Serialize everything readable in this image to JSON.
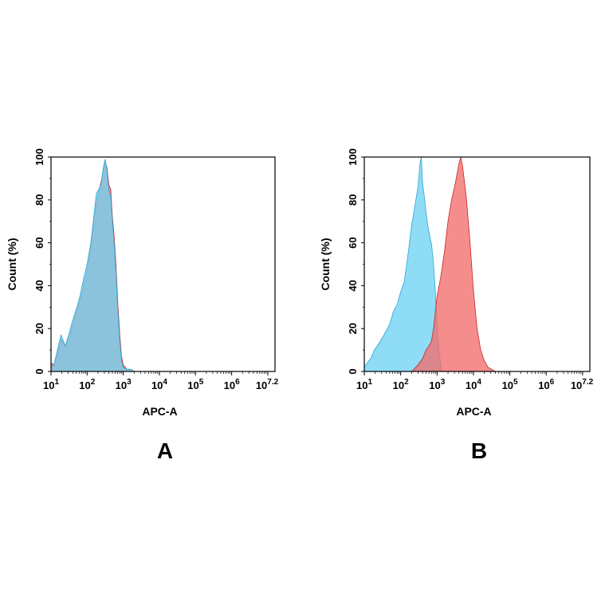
{
  "chart_data": [
    {
      "type": "area",
      "panel_label": "A",
      "xlabel": "APC-A",
      "ylabel": "Count (%)",
      "x_scale": "log10",
      "xlim": [
        10,
        15848931.92
      ],
      "ylim": [
        0,
        100
      ],
      "x_tick_labels": [
        {
          "base": "10",
          "exp": "1"
        },
        {
          "base": "10",
          "exp": "2"
        },
        {
          "base": "10",
          "exp": "3"
        },
        {
          "base": "10",
          "exp": "4"
        },
        {
          "base": "10",
          "exp": "5"
        },
        {
          "base": "10",
          "exp": "6"
        },
        {
          "base": "10",
          "exp": "7.2"
        }
      ],
      "y_tick_labels": [
        "0",
        "20",
        "40",
        "60",
        "80",
        "100"
      ],
      "grid": false,
      "series": [
        {
          "color": "#f26d6d",
          "stroke": "#c62828",
          "points": [
            [
              10,
              4
            ],
            [
              12,
              3
            ],
            [
              15,
              8
            ],
            [
              19,
              15
            ],
            [
              25,
              12
            ],
            [
              32,
              16
            ],
            [
              40,
              22
            ],
            [
              50,
              28
            ],
            [
              63,
              33
            ],
            [
              79,
              40
            ],
            [
              100,
              47
            ],
            [
              126,
              58
            ],
            [
              150,
              68
            ],
            [
              180,
              79
            ],
            [
              210,
              84
            ],
            [
              240,
              88
            ],
            [
              280,
              94
            ],
            [
              315,
              98
            ],
            [
              355,
              95
            ],
            [
              400,
              87
            ],
            [
              450,
              85
            ],
            [
              500,
              72
            ],
            [
              560,
              63
            ],
            [
              630,
              49
            ],
            [
              710,
              31
            ],
            [
              800,
              17
            ],
            [
              890,
              7
            ],
            [
              1000,
              3
            ],
            [
              1260,
              1
            ],
            [
              1600,
              1
            ],
            [
              2000,
              0
            ],
            [
              4000,
              0
            ]
          ]
        },
        {
          "color": "#6ed2f2",
          "stroke": "#2aa7d6",
          "points": [
            [
              10,
              2
            ],
            [
              12,
              3
            ],
            [
              15,
              10
            ],
            [
              19,
              17
            ],
            [
              25,
              12
            ],
            [
              32,
              18
            ],
            [
              40,
              24
            ],
            [
              50,
              29
            ],
            [
              63,
              35
            ],
            [
              79,
              43
            ],
            [
              100,
              50
            ],
            [
              126,
              60
            ],
            [
              150,
              71
            ],
            [
              180,
              83
            ],
            [
              210,
              85
            ],
            [
              240,
              87
            ],
            [
              280,
              95
            ],
            [
              315,
              99
            ],
            [
              355,
              94
            ],
            [
              400,
              84
            ],
            [
              450,
              82
            ],
            [
              500,
              70
            ],
            [
              560,
              60
            ],
            [
              630,
              46
            ],
            [
              710,
              28
            ],
            [
              800,
              14
            ],
            [
              890,
              5
            ],
            [
              1000,
              2
            ],
            [
              1260,
              1
            ],
            [
              1600,
              1
            ],
            [
              2000,
              0
            ],
            [
              4000,
              0
            ]
          ]
        }
      ]
    },
    {
      "type": "area",
      "panel_label": "B",
      "xlabel": "APC-A",
      "ylabel": "Count (%)",
      "x_scale": "log10",
      "xlim": [
        10,
        15848931.92
      ],
      "ylim": [
        0,
        100
      ],
      "x_tick_labels": [
        {
          "base": "10",
          "exp": "1"
        },
        {
          "base": "10",
          "exp": "2"
        },
        {
          "base": "10",
          "exp": "3"
        },
        {
          "base": "10",
          "exp": "4"
        },
        {
          "base": "10",
          "exp": "5"
        },
        {
          "base": "10",
          "exp": "6"
        },
        {
          "base": "10",
          "exp": "7.2"
        }
      ],
      "y_tick_labels": [
        "0",
        "20",
        "40",
        "60",
        "80",
        "100"
      ],
      "grid": false,
      "series": [
        {
          "color": "#6ed2f2",
          "stroke": "#2aa7d6",
          "points": [
            [
              10,
              2
            ],
            [
              12,
              4
            ],
            [
              15,
              6
            ],
            [
              19,
              10
            ],
            [
              25,
              13
            ],
            [
              32,
              16
            ],
            [
              40,
              19
            ],
            [
              50,
              22
            ],
            [
              63,
              28
            ],
            [
              79,
              31
            ],
            [
              100,
              37
            ],
            [
              126,
              42
            ],
            [
              160,
              55
            ],
            [
              200,
              68
            ],
            [
              250,
              78
            ],
            [
              300,
              86
            ],
            [
              340,
              97
            ],
            [
              370,
              100
            ],
            [
              400,
              88
            ],
            [
              450,
              81
            ],
            [
              500,
              74
            ],
            [
              560,
              68
            ],
            [
              630,
              63
            ],
            [
              710,
              59
            ],
            [
              800,
              50
            ],
            [
              890,
              38
            ],
            [
              1000,
              22
            ],
            [
              1100,
              12
            ],
            [
              1260,
              3
            ],
            [
              1400,
              0
            ],
            [
              2000,
              0
            ]
          ]
        },
        {
          "color": "#f26d6d",
          "stroke": "#c62828",
          "points": [
            [
              200,
              0
            ],
            [
              300,
              3
            ],
            [
              400,
              6
            ],
            [
              500,
              10
            ],
            [
              600,
              12
            ],
            [
              700,
              14
            ],
            [
              800,
              20
            ],
            [
              900,
              28
            ],
            [
              1000,
              35
            ],
            [
              1260,
              44
            ],
            [
              1600,
              56
            ],
            [
              2000,
              70
            ],
            [
              2500,
              80
            ],
            [
              3200,
              88
            ],
            [
              4000,
              97
            ],
            [
              4500,
              100
            ],
            [
              5000,
              96
            ],
            [
              6300,
              82
            ],
            [
              7900,
              62
            ],
            [
              10000,
              38
            ],
            [
              12600,
              20
            ],
            [
              15800,
              10
            ],
            [
              20000,
              5
            ],
            [
              25000,
              2
            ],
            [
              32000,
              1
            ],
            [
              40000,
              0
            ],
            [
              60000,
              0
            ]
          ]
        }
      ]
    }
  ]
}
